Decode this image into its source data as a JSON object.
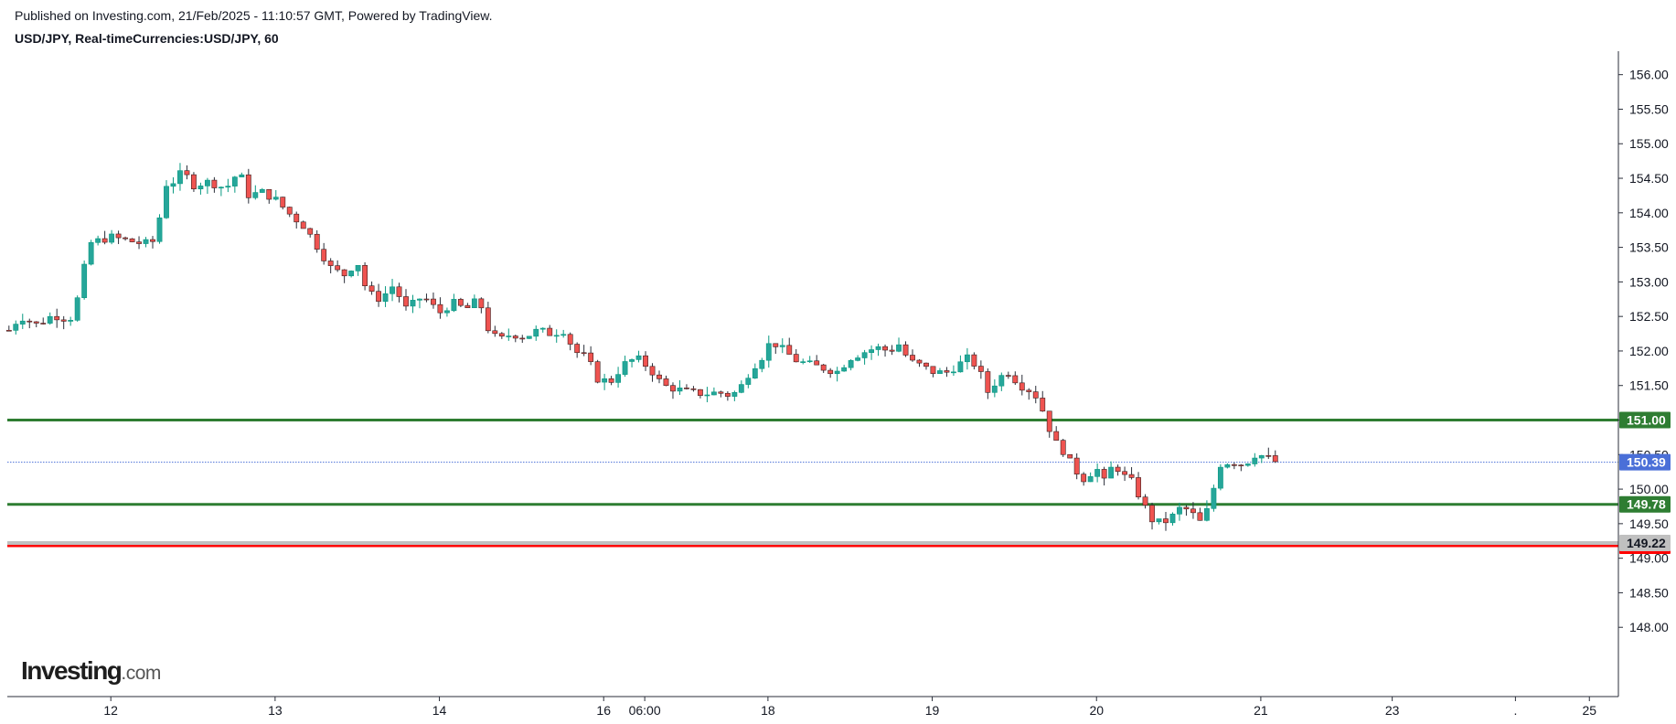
{
  "header": {
    "published": "Published on Investing.com, 21/Feb/2025 - 11:10:57 GMT, Powered by TradingView.",
    "symbol": "USD/JPY, Real-timeCurrencies:USD/JPY, 60"
  },
  "logo": {
    "main": "Investing",
    "suffix": ".com"
  },
  "chart_data": {
    "type": "candlestick",
    "y_ticks": [
      148.0,
      148.5,
      149.0,
      149.5,
      150.0,
      150.5,
      151.0,
      151.5,
      152.0,
      152.5,
      153.0,
      153.5,
      154.0,
      154.5,
      155.0,
      155.5,
      156.0
    ],
    "y_range": [
      147.5,
      156.3
    ],
    "x_ticks": [
      {
        "label": "12",
        "pos": 12.5
      },
      {
        "label": "13",
        "pos": 13.5
      },
      {
        "label": "14",
        "pos": 14.5
      },
      {
        "label": "16",
        "pos": 15.5
      },
      {
        "label": "06:00",
        "pos": 15.75
      },
      {
        "label": "18",
        "pos": 16.5
      },
      {
        "label": "19",
        "pos": 17.5
      },
      {
        "label": "20",
        "pos": 18.5
      },
      {
        "label": "21",
        "pos": 19.5
      },
      {
        "label": "23",
        "pos": 20.3
      },
      {
        "label": ".",
        "pos": 21.05
      },
      {
        "label": "25",
        "pos": 21.5
      }
    ],
    "x_range": [
      11.87,
      21.66
    ],
    "candle_step_hours": 1,
    "path": [
      [
        11.88,
        152.3
      ],
      [
        11.95,
        152.5
      ],
      [
        12.05,
        152.38
      ],
      [
        12.15,
        152.52
      ],
      [
        12.25,
        152.45
      ],
      [
        12.32,
        152.9
      ],
      [
        12.36,
        153.55
      ],
      [
        12.5,
        153.65
      ],
      [
        12.6,
        153.6
      ],
      [
        12.7,
        153.55
      ],
      [
        12.78,
        153.6
      ],
      [
        12.82,
        154.4
      ],
      [
        12.88,
        154.45
      ],
      [
        12.94,
        154.6
      ],
      [
        13.0,
        154.4
      ],
      [
        13.1,
        154.45
      ],
      [
        13.2,
        154.35
      ],
      [
        13.28,
        154.6
      ],
      [
        13.34,
        154.25
      ],
      [
        13.42,
        154.3
      ],
      [
        13.5,
        154.2
      ],
      [
        13.58,
        154.0
      ],
      [
        13.68,
        153.8
      ],
      [
        13.76,
        153.5
      ],
      [
        13.84,
        153.2
      ],
      [
        13.92,
        153.1
      ],
      [
        14.0,
        153.3
      ],
      [
        14.06,
        152.85
      ],
      [
        14.14,
        152.75
      ],
      [
        14.22,
        152.95
      ],
      [
        14.3,
        152.6
      ],
      [
        14.4,
        152.8
      ],
      [
        14.5,
        152.55
      ],
      [
        14.58,
        152.7
      ],
      [
        14.66,
        152.6
      ],
      [
        14.74,
        152.75
      ],
      [
        14.8,
        152.3
      ],
      [
        14.86,
        152.15
      ],
      [
        14.94,
        152.25
      ],
      [
        15.02,
        152.2
      ],
      [
        15.1,
        152.3
      ],
      [
        15.18,
        152.25
      ],
      [
        15.26,
        152.3
      ],
      [
        15.32,
        152.0
      ],
      [
        15.4,
        151.9
      ],
      [
        15.46,
        151.6
      ],
      [
        15.54,
        151.55
      ],
      [
        15.62,
        151.8
      ],
      [
        15.7,
        151.9
      ],
      [
        15.78,
        151.75
      ],
      [
        15.86,
        151.5
      ],
      [
        15.94,
        151.45
      ],
      [
        16.02,
        151.4
      ],
      [
        16.12,
        151.38
      ],
      [
        16.2,
        151.4
      ],
      [
        16.28,
        151.35
      ],
      [
        16.34,
        151.5
      ],
      [
        16.4,
        151.75
      ],
      [
        16.46,
        151.9
      ],
      [
        16.52,
        152.15
      ],
      [
        16.6,
        152.0
      ],
      [
        16.68,
        151.85
      ],
      [
        16.76,
        151.8
      ],
      [
        16.84,
        151.75
      ],
      [
        16.92,
        151.7
      ],
      [
        17.0,
        151.9
      ],
      [
        17.08,
        151.98
      ],
      [
        17.16,
        152.05
      ],
      [
        17.24,
        152.0
      ],
      [
        17.3,
        152.1
      ],
      [
        17.36,
        151.85
      ],
      [
        17.42,
        151.8
      ],
      [
        17.5,
        151.7
      ],
      [
        17.58,
        151.68
      ],
      [
        17.66,
        151.8
      ],
      [
        17.72,
        151.9
      ],
      [
        17.78,
        151.75
      ],
      [
        17.84,
        151.4
      ],
      [
        17.9,
        151.6
      ],
      [
        17.96,
        151.7
      ],
      [
        18.04,
        151.5
      ],
      [
        18.12,
        151.4
      ],
      [
        18.18,
        151.1
      ],
      [
        18.24,
        150.7
      ],
      [
        18.3,
        150.55
      ],
      [
        18.36,
        150.3
      ],
      [
        18.42,
        150.15
      ],
      [
        18.5,
        150.3
      ],
      [
        18.56,
        150.05
      ],
      [
        18.6,
        150.4
      ],
      [
        18.66,
        150.2
      ],
      [
        18.72,
        150.1
      ],
      [
        18.78,
        149.8
      ],
      [
        18.84,
        149.55
      ],
      [
        18.9,
        149.5
      ],
      [
        18.96,
        149.6
      ],
      [
        19.02,
        149.75
      ],
      [
        19.08,
        149.65
      ],
      [
        19.14,
        149.5
      ],
      [
        19.2,
        149.85
      ],
      [
        19.24,
        150.35
      ],
      [
        19.32,
        150.4
      ],
      [
        19.4,
        150.35
      ],
      [
        19.46,
        150.5
      ],
      [
        19.52,
        150.48
      ],
      [
        19.58,
        150.4
      ],
      [
        19.62,
        150.39
      ]
    ],
    "levels": [
      {
        "value": 151.0,
        "label": "151.00",
        "color": "#2e7d32",
        "style": "solid"
      },
      {
        "value": 149.78,
        "label": "149.78",
        "color": "#2e7d32",
        "style": "solid"
      },
      {
        "value": 149.18,
        "label": "149.18",
        "color": "#ff0000",
        "style": "solid"
      },
      {
        "value": 149.22,
        "label": "149.22",
        "color": "#c0c0c0",
        "style": "solid"
      },
      {
        "value": 150.39,
        "label": "150.39",
        "color": "#4a6fd8",
        "style": "dotted"
      }
    ],
    "colors": {
      "up": "#089981",
      "down": "#f23645",
      "up_fill": "#26a69a",
      "down_fill": "#ef5350"
    },
    "grid": false
  }
}
